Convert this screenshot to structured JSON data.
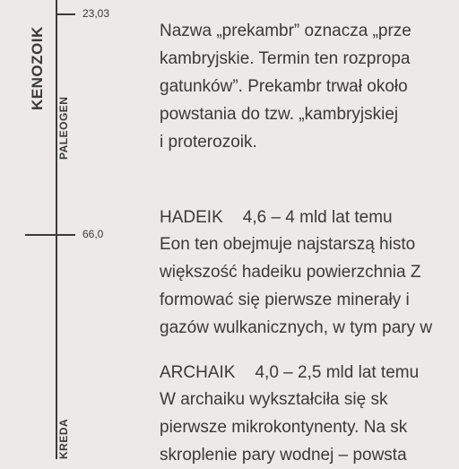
{
  "timeline": {
    "era_label": "KENOZOIK",
    "periods": [
      "PALEOGEN",
      "KREDA"
    ],
    "ticks": [
      "23,03",
      "66,0"
    ]
  },
  "intro": {
    "lines": [
      "Nazwa „prekambr” oznacza „prze",
      "kambryjskie. Termin ten rozpropa",
      "gatunków”. Prekambr trwał około",
      "powstania do tzw. „kambryjskiej",
      "i proterozoik."
    ]
  },
  "hadeik": {
    "title": "HADEIK",
    "dates": "4,6 – 4 mld lat temu",
    "lines": [
      "Eon ten obejmuje najstarszą histo",
      "większość hadeiku powierzchnia Z",
      "formować się pierwsze minerały i",
      "gazów wulkanicznych, w tym pary w"
    ]
  },
  "archaik": {
    "title": "ARCHAIK",
    "dates": "4,0 – 2,5 mld lat temu",
    "lines": [
      "W archaiku wykształciła się sk",
      "pierwsze mikrokontynenty. Na sk",
      "skroplenie pary wodnej – powsta"
    ]
  }
}
